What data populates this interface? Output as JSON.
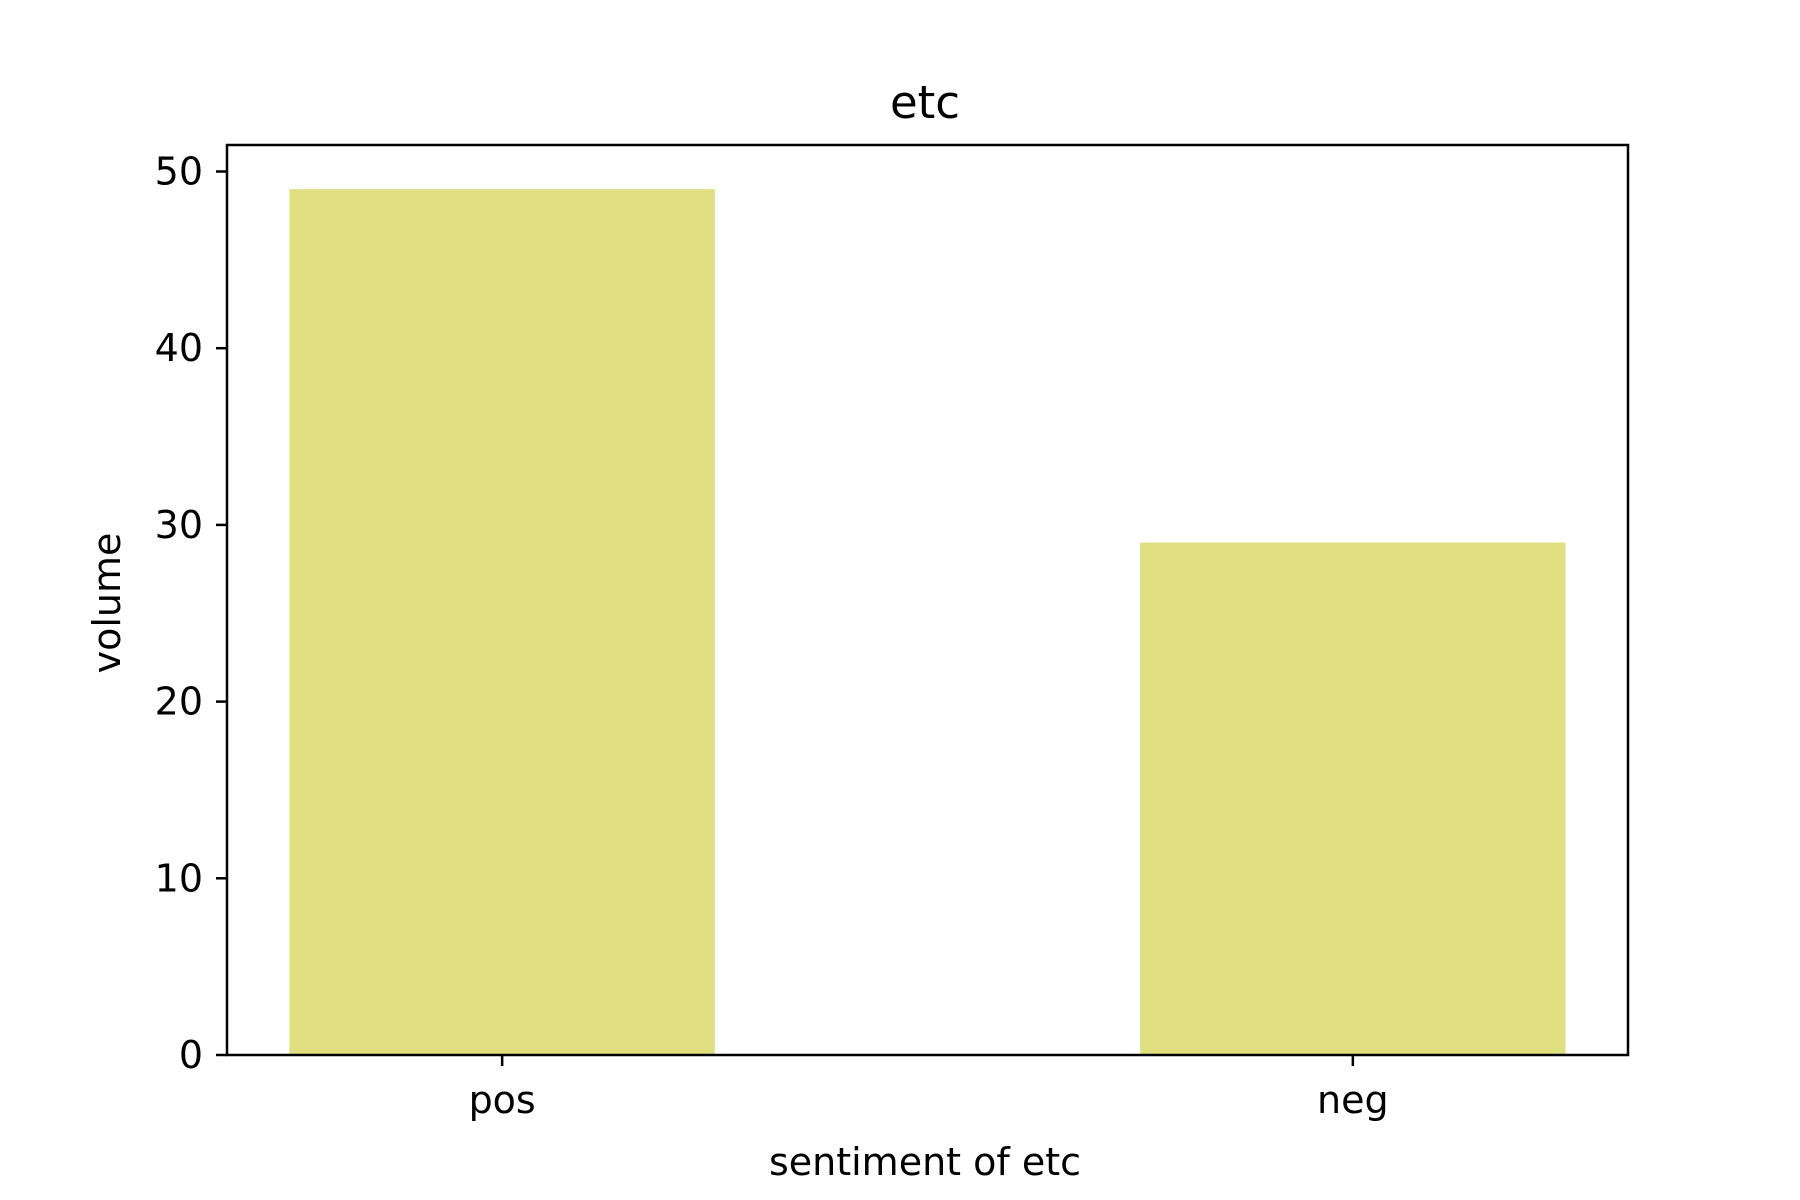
{
  "chart_data": {
    "type": "bar",
    "title": "etc",
    "xlabel": "sentiment of etc",
    "ylabel": "volume",
    "categories": [
      "pos",
      "neg"
    ],
    "values": [
      49,
      29
    ],
    "ylim": [
      0,
      51.5
    ],
    "yticks": [
      0,
      10,
      20,
      30,
      40,
      50
    ],
    "grid": false,
    "bar_color": "#dfdf7f",
    "axis_color": "#000000"
  }
}
